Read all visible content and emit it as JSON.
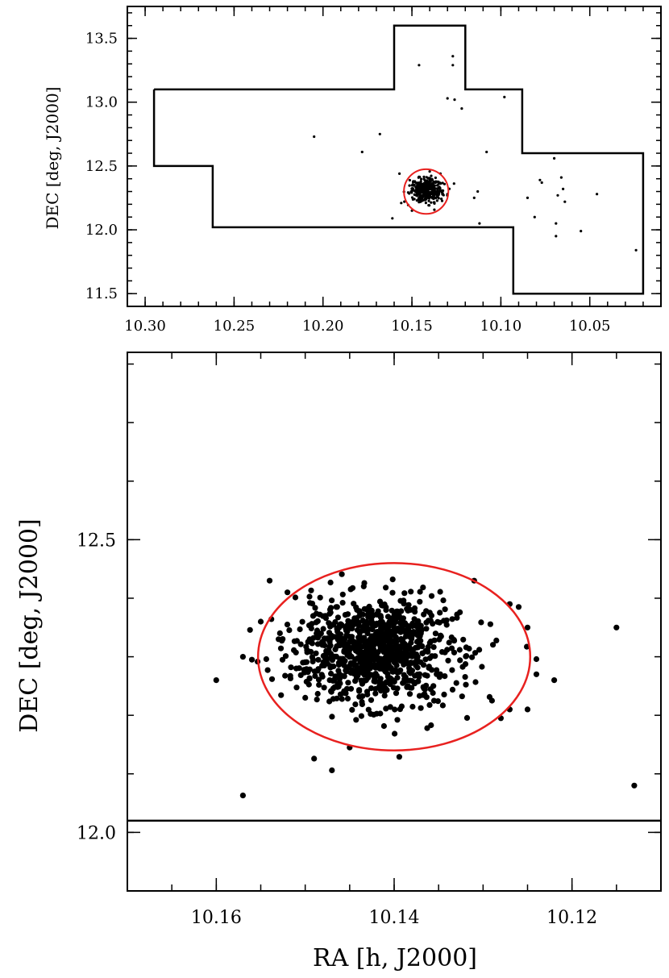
{
  "chart_data": [
    {
      "type": "scatter",
      "panel": "overview",
      "xlabel": "",
      "ylabel": "DEC [deg, J2000]",
      "xlim": [
        10.31,
        10.01
      ],
      "ylim": [
        11.4,
        13.75
      ],
      "x_ticks": [
        "10.30",
        "10.25",
        "10.20",
        "10.15",
        "10.10",
        "10.05"
      ],
      "y_ticks": [
        "11.5",
        "12.0",
        "12.5",
        "13.0",
        "13.5"
      ],
      "footprint_outline": [
        [
          10.295,
          13.1
        ],
        [
          10.16,
          13.1
        ],
        [
          10.16,
          13.6
        ],
        [
          10.12,
          13.6
        ],
        [
          10.12,
          13.1
        ],
        [
          10.088,
          13.1
        ],
        [
          10.088,
          12.6
        ],
        [
          10.02,
          12.6
        ],
        [
          10.02,
          11.5
        ],
        [
          10.093,
          11.5
        ],
        [
          10.093,
          12.02
        ],
        [
          10.262,
          12.02
        ],
        [
          10.262,
          12.5
        ],
        [
          10.295,
          12.5
        ],
        [
          10.295,
          13.1
        ]
      ],
      "ellipse": {
        "center": [
          10.142,
          12.3
        ],
        "rx_h": 0.0125,
        "ry_deg": 0.175,
        "color": "#e8211f"
      },
      "cluster": {
        "center": [
          10.142,
          12.31
        ],
        "sigma_x_h": 0.0045,
        "sigma_y_deg": 0.045,
        "count": 420
      },
      "points": [
        [
          10.205,
          12.73
        ],
        [
          10.178,
          12.61
        ],
        [
          10.168,
          12.75
        ],
        [
          10.146,
          13.29
        ],
        [
          10.13,
          13.03
        ],
        [
          10.126,
          13.02
        ],
        [
          10.127,
          13.29
        ],
        [
          10.127,
          13.36
        ],
        [
          10.122,
          12.95
        ],
        [
          10.115,
          12.25
        ],
        [
          10.112,
          12.05
        ],
        [
          10.108,
          12.61
        ],
        [
          10.098,
          13.04
        ],
        [
          10.085,
          12.25
        ],
        [
          10.081,
          12.1
        ],
        [
          10.077,
          12.37
        ],
        [
          10.078,
          12.39
        ],
        [
          10.07,
          12.56
        ],
        [
          10.068,
          12.27
        ],
        [
          10.069,
          12.05
        ],
        [
          10.069,
          11.95
        ],
        [
          10.066,
          12.41
        ],
        [
          10.065,
          12.32
        ],
        [
          10.064,
          12.22
        ],
        [
          10.055,
          11.99
        ],
        [
          10.046,
          12.28
        ],
        [
          10.024,
          11.84
        ],
        [
          10.134,
          12.44
        ],
        [
          10.13,
          12.28
        ],
        [
          10.15,
          12.15
        ],
        [
          10.156,
          12.21
        ],
        [
          10.161,
          12.09
        ],
        [
          10.157,
          12.44
        ],
        [
          10.113,
          12.3
        ]
      ]
    },
    {
      "type": "scatter",
      "panel": "zoom",
      "xlabel": "RA [h, J2000]",
      "ylabel": "DEC [deg, J2000]",
      "xlim": [
        10.17,
        10.11
      ],
      "ylim": [
        11.9,
        12.82
      ],
      "x_ticks": [
        "10.16",
        "10.14",
        "10.12"
      ],
      "y_ticks": [
        "12.0",
        "12.5"
      ],
      "boundary_line_dec": 12.02,
      "ellipse": {
        "center": [
          10.14,
          12.3
        ],
        "rx_h": 0.0153,
        "ry_deg": 0.16,
        "color": "#e8211f"
      },
      "cluster": {
        "center": [
          10.142,
          12.31
        ],
        "sigma_x_h": 0.0045,
        "sigma_y_deg": 0.045,
        "count": 950
      },
      "points": [
        [
          10.16,
          12.26
        ],
        [
          10.157,
          12.063
        ],
        [
          10.157,
          12.3
        ],
        [
          10.156,
          12.295
        ],
        [
          10.154,
          12.43
        ],
        [
          10.155,
          12.36
        ],
        [
          10.152,
          12.41
        ],
        [
          10.149,
          12.126
        ],
        [
          10.147,
          12.106
        ],
        [
          10.145,
          12.145
        ],
        [
          10.131,
          12.43
        ],
        [
          10.127,
          12.39
        ],
        [
          10.126,
          12.385
        ],
        [
          10.125,
          12.35
        ],
        [
          10.124,
          12.296
        ],
        [
          10.122,
          12.26
        ],
        [
          10.124,
          12.27
        ],
        [
          10.125,
          12.21
        ],
        [
          10.127,
          12.21
        ],
        [
          10.128,
          12.195
        ],
        [
          10.129,
          12.225
        ],
        [
          10.115,
          12.35
        ],
        [
          10.113,
          12.08
        ],
        [
          10.15,
          12.23
        ],
        [
          10.151,
          12.28
        ],
        [
          10.153,
          12.33
        ]
      ]
    }
  ]
}
